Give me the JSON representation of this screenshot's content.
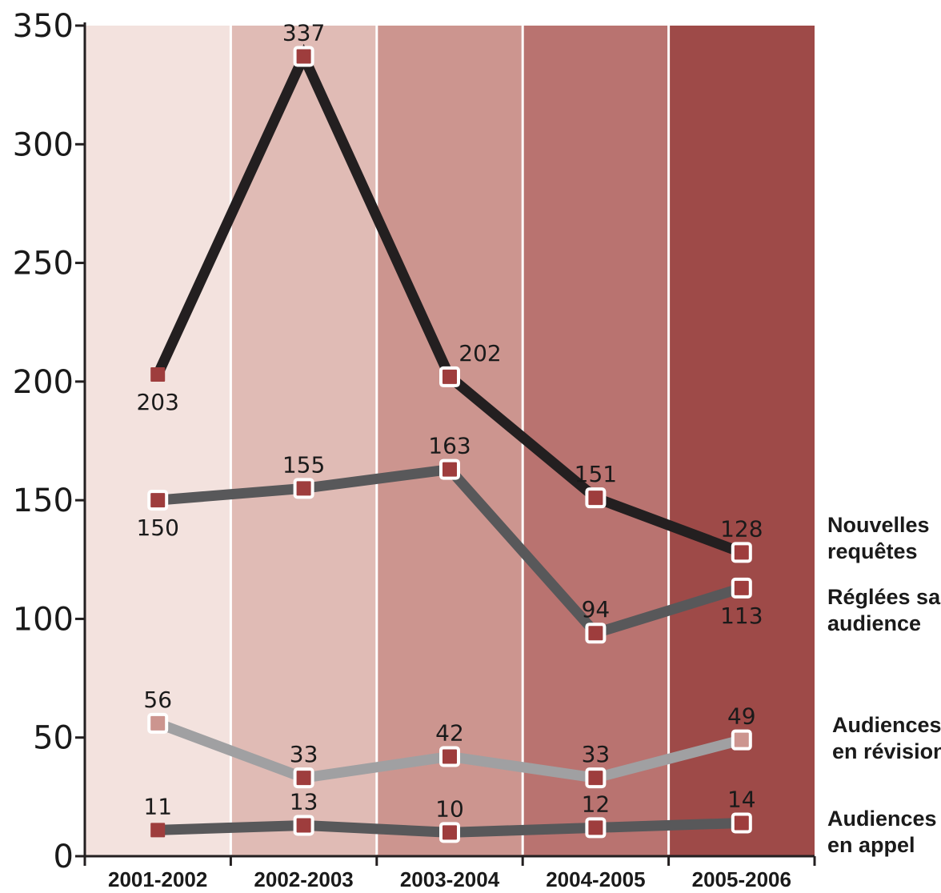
{
  "chart_data": {
    "type": "line",
    "categories": [
      "2001-2002",
      "2002-2003",
      "2003-2004",
      "2004-2005",
      "2005-2006"
    ],
    "ylim": [
      0,
      350
    ],
    "yticks": [
      0,
      50,
      100,
      150,
      200,
      250,
      300,
      350
    ],
    "band_colors": [
      "#f3e2de",
      "#e0bbb5",
      "#cc958f",
      "#b97370",
      "#9e4a48"
    ],
    "series": [
      {
        "name": "Nouvelles requêtes",
        "legend_lines": [
          "Nouvelles",
          "requêtes"
        ],
        "values": [
          203,
          337,
          202,
          151,
          128
        ],
        "labels": [
          "203",
          "337",
          "202",
          "151",
          "128"
        ],
        "line_color": "#231f20",
        "marker_fills": [
          "#9e3d3d",
          "#9e3d3d",
          "#9e3d3d",
          "#9e3d3d",
          "#9e3d3d"
        ],
        "marker_borders": [
          "none",
          "white",
          "white",
          "white",
          "white"
        ],
        "label_pos": [
          "below",
          "above",
          "above-right",
          "above",
          "above"
        ]
      },
      {
        "name": "Réglées sans audience",
        "legend_lines": [
          "Réglées sans",
          "audience"
        ],
        "values": [
          150,
          155,
          163,
          94,
          113
        ],
        "labels": [
          "150",
          "155",
          "163",
          "94",
          "113"
        ],
        "line_color": "#58585a",
        "marker_fills": [
          "#9e3d3d",
          "#9e3d3d",
          "#9e3d3d",
          "#9e3d3d",
          "#9e3d3d"
        ],
        "marker_borders": [
          "white",
          "white",
          "white",
          "white",
          "white"
        ],
        "label_pos": [
          "below",
          "above",
          "above",
          "above",
          "below"
        ]
      },
      {
        "name": "Audiences en révision",
        "legend_lines": [
          "Audiences",
          "en révision"
        ],
        "values": [
          56,
          33,
          42,
          33,
          49
        ],
        "labels": [
          "56",
          "33",
          "42",
          "33",
          "49"
        ],
        "line_color": "#a0a0a2",
        "marker_fills": [
          "#cc958f",
          "#9e3d3d",
          "#9e3d3d",
          "#9e3d3d",
          "#cc958f"
        ],
        "marker_borders": [
          "white",
          "white",
          "white",
          "white",
          "white"
        ],
        "label_pos": [
          "above",
          "above",
          "above",
          "above",
          "above"
        ]
      },
      {
        "name": "Audiences en appel",
        "legend_lines": [
          "Audiences",
          "en appel"
        ],
        "values": [
          11,
          13,
          10,
          12,
          14
        ],
        "labels": [
          "11",
          "13",
          "10",
          "12",
          "14"
        ],
        "line_color": "#58585a",
        "marker_fills": [
          "#9e3d3d",
          "#9e3d3d",
          "#9e3d3d",
          "#9e3d3d",
          "#9e3d3d"
        ],
        "marker_borders": [
          "none",
          "white",
          "white",
          "white",
          "white"
        ],
        "label_pos": [
          "above",
          "above",
          "above",
          "above",
          "above"
        ]
      }
    ]
  }
}
